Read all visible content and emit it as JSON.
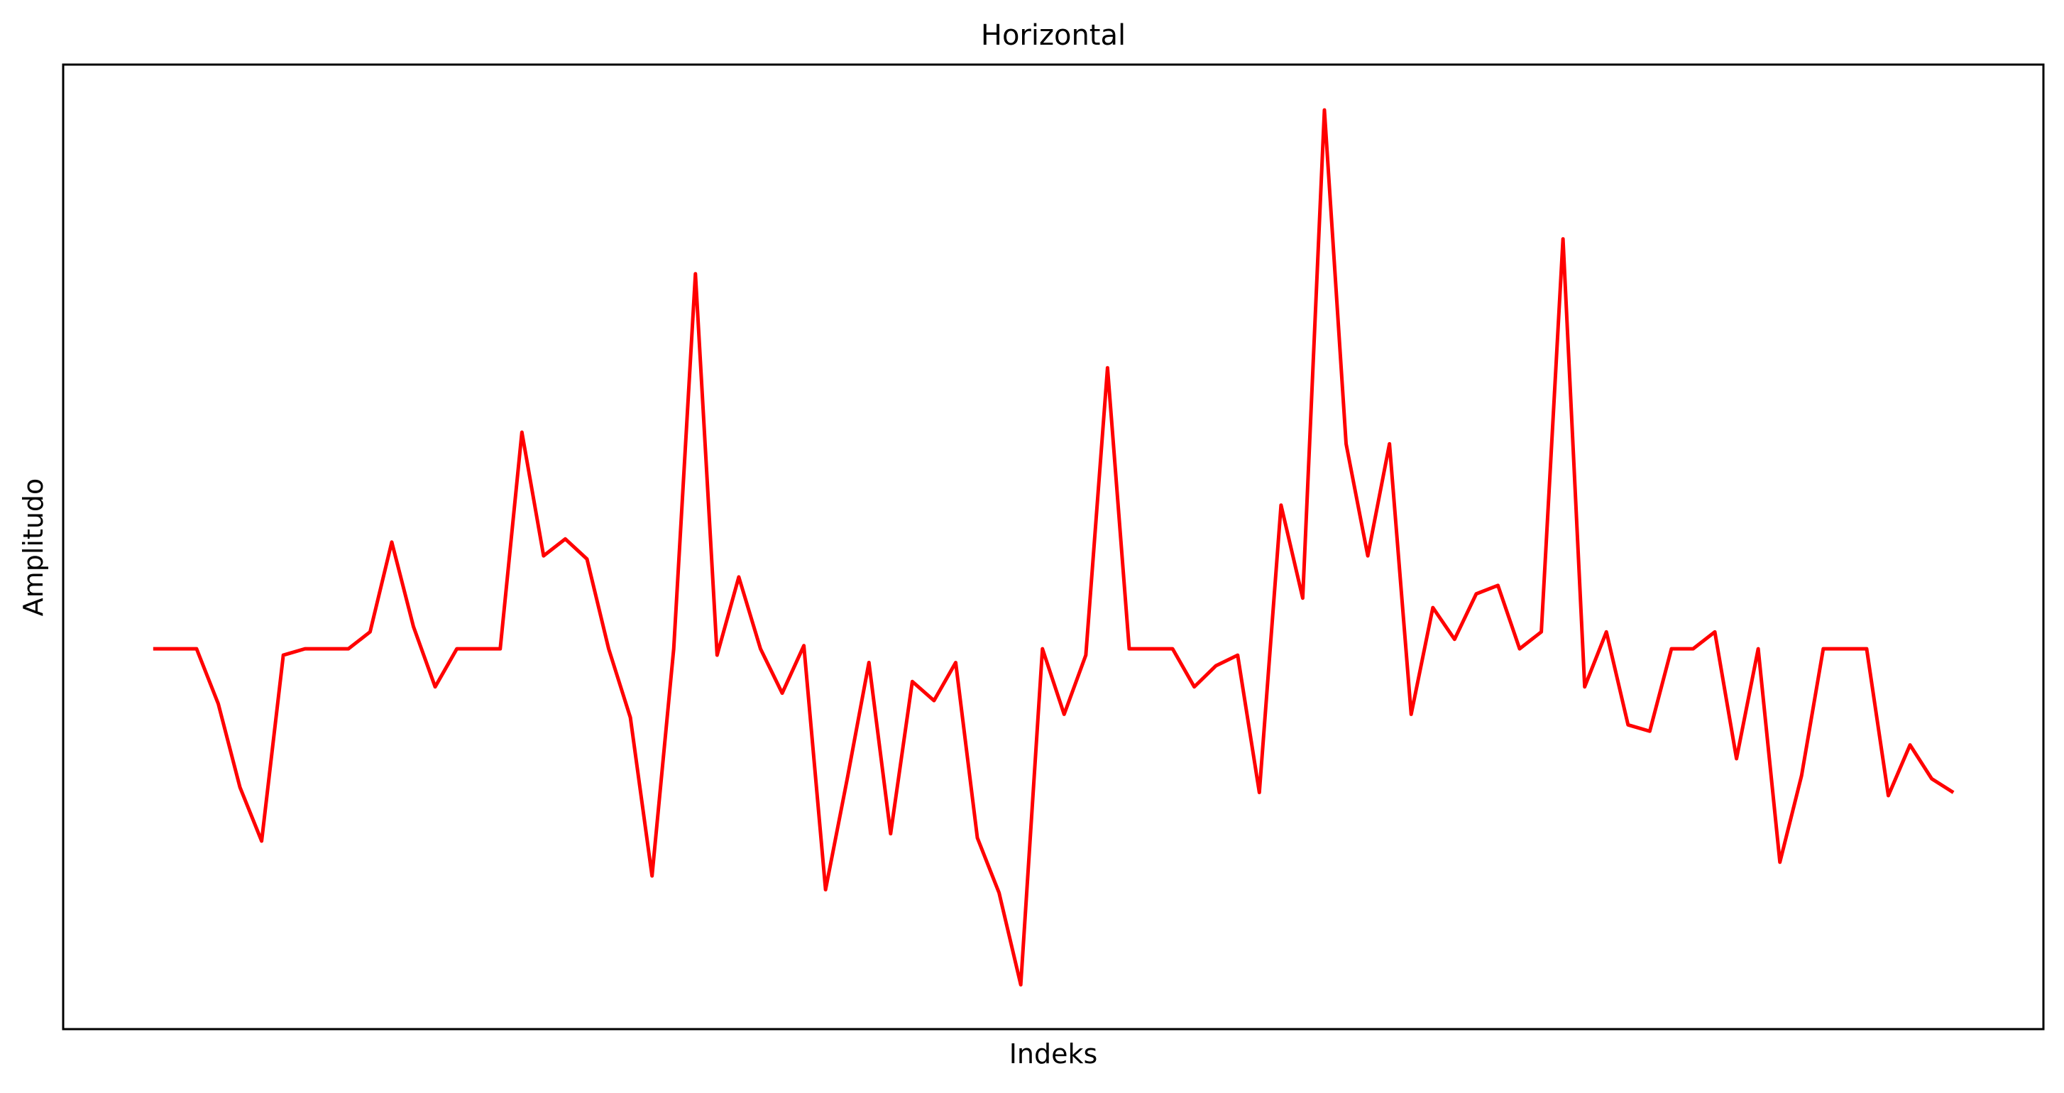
{
  "chart_data": {
    "type": "line",
    "title": "Horizontal",
    "xlabel": "Indeks",
    "ylabel": "Amplitudo",
    "x_ticks_visible": false,
    "y_ticks_visible": false,
    "grid": false,
    "legend": "none",
    "x": [
      0,
      1,
      2,
      3,
      4,
      5,
      6,
      7,
      8,
      9,
      10,
      11,
      12,
      13,
      14,
      15,
      16,
      17,
      18,
      19,
      20,
      21,
      22,
      23,
      24,
      25,
      26,
      27,
      28,
      29,
      30,
      31,
      32,
      33,
      34,
      35,
      36,
      37,
      38,
      39,
      40,
      41,
      42,
      43,
      44,
      45,
      46,
      47,
      48,
      49,
      50,
      51,
      52,
      53,
      54,
      55,
      56,
      57,
      58,
      59,
      60,
      61,
      62,
      63,
      64,
      65,
      66,
      67,
      68,
      69,
      70,
      71,
      72,
      73,
      74,
      75,
      76,
      77,
      78,
      79,
      80,
      81,
      82,
      83
    ],
    "series": [
      {
        "color": "#ff0000",
        "values": [
          0,
          0,
          0,
          -0.52,
          -1.31,
          -1.82,
          -0.06,
          0,
          0,
          0,
          0.16,
          1.01,
          0.21,
          -0.36,
          0,
          0,
          0,
          2.05,
          0.88,
          1.04,
          0.85,
          0,
          -0.65,
          -2.15,
          0,
          3.55,
          -0.06,
          0.68,
          0,
          -0.42,
          0.03,
          -2.28,
          -1.23,
          -0.13,
          -1.75,
          -0.31,
          -0.49,
          -0.13,
          -1.79,
          -2.31,
          -3.18,
          0,
          -0.62,
          -0.06,
          2.66,
          0,
          0,
          0,
          -0.36,
          -0.16,
          -0.06,
          -1.36,
          1.36,
          0.48,
          5.1,
          1.94,
          0.88,
          1.94,
          -0.62,
          0.39,
          0.09,
          0.52,
          0.6,
          0,
          0.16,
          3.88,
          -0.36,
          0.16,
          -0.72,
          -0.78,
          0,
          0,
          0.16,
          -1.04,
          0,
          -2.02,
          -1.2,
          0,
          0,
          0,
          -1.39,
          -0.91,
          -1.23,
          -1.36
        ]
      }
    ],
    "xlim": [
      -4.15,
      87.15
    ],
    "ylim": [
      -3.6,
      5.53
    ]
  }
}
